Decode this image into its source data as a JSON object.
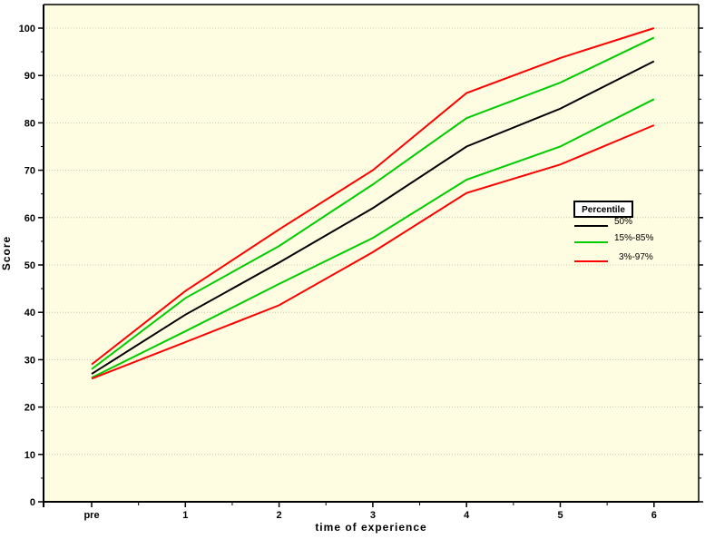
{
  "chart_data": {
    "type": "line",
    "categories": [
      "pre",
      "1",
      "2",
      "3",
      "4",
      "5",
      "6"
    ],
    "xlabel": "time of experience",
    "ylabel": "Score",
    "ylim": [
      0,
      100
    ],
    "yticks": [
      0,
      10,
      20,
      30,
      40,
      50,
      60,
      70,
      80,
      90,
      100
    ],
    "grid": "horizontal dotted",
    "legend_title": "Percentile",
    "legend_placement": "right",
    "series": [
      {
        "name": "3%-97%",
        "color": "#ff0000",
        "values": [
          29,
          44.5,
          57.5,
          70,
          86.3,
          93.7,
          100
        ]
      },
      {
        "name": "15%-85%",
        "color": "#00cc00",
        "values": [
          28,
          43,
          54,
          67,
          81,
          88.5,
          98
        ]
      },
      {
        "name": "50%",
        "color": "#000000",
        "values": [
          27,
          39.5,
          50.5,
          62,
          75,
          83,
          93
        ]
      },
      {
        "name": "15%-85%",
        "color": "#00cc00",
        "values": [
          26.2,
          36,
          46,
          55.7,
          68,
          75,
          85
        ]
      },
      {
        "name": "3%-97%",
        "color": "#ff0000",
        "values": [
          26,
          33.7,
          41.5,
          52.7,
          65.2,
          71.2,
          79.5
        ]
      }
    ],
    "legend": [
      {
        "label": "50%",
        "color": "#000000"
      },
      {
        "label": "15%-85%",
        "color": "#00cc00"
      },
      {
        "label": "3%-97%",
        "color": "#ff0000"
      }
    ],
    "background_color": "#fffde1"
  }
}
